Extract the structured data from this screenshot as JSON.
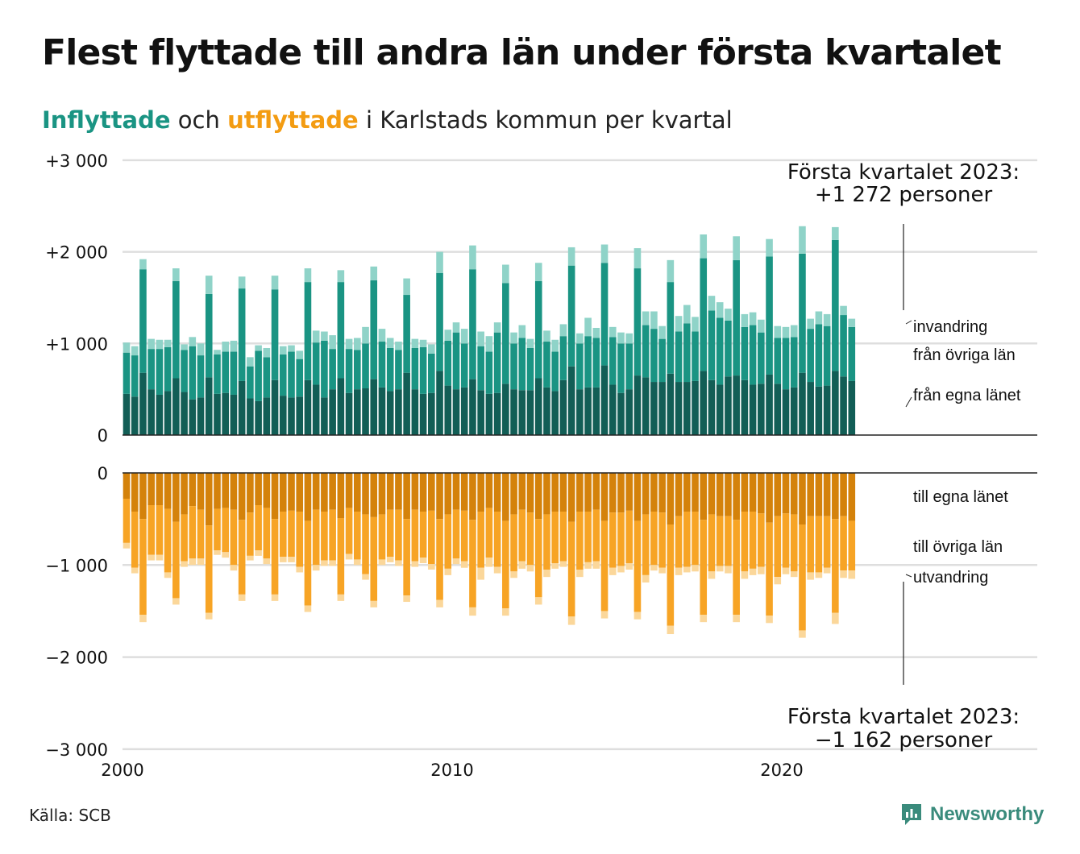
{
  "title": "Flest flyttade till andra län under första kvartalet",
  "subtitle": {
    "in_word": "Inflyttade",
    "and_word": "och",
    "out_word": "utflyttade",
    "rest": "i Karlstads kommun per kvartal"
  },
  "source": "Källa: SCB",
  "brand": "Newsworthy",
  "colors": {
    "in_own": "#125e56",
    "in_other": "#1a9483",
    "in_immig": "#8fd3c8",
    "out_own": "#d4820b",
    "out_other": "#f7a425",
    "out_emig": "#fbd79a"
  },
  "annotations": {
    "top_line1": "Första kvartalet 2023:",
    "top_line2": "+1 272 personer",
    "bottom_line1": "Första kvartalet 2023:",
    "bottom_line2": "−1 162 personer"
  },
  "chart_data": {
    "type": "bar",
    "stacked": true,
    "x_start": "2000 Q1",
    "x_end": "2023 Q1",
    "x_tick_labels": [
      "2000",
      "2010",
      "2020"
    ],
    "x_ticks": [
      2000,
      2010,
      2020
    ],
    "top_panel": {
      "y_tick_labels": [
        "0",
        "+1 000",
        "+2 000",
        "+3 000"
      ],
      "y_ticks": [
        0,
        1000,
        2000,
        3000
      ],
      "ylim": [
        0,
        3000
      ],
      "series": [
        {
          "name": "från egna länet",
          "values": [
            450,
            420,
            680,
            500,
            440,
            480,
            620,
            470,
            390,
            410,
            630,
            450,
            460,
            440,
            590,
            400,
            370,
            410,
            600,
            430,
            410,
            420,
            600,
            550,
            410,
            500,
            620,
            460,
            500,
            510,
            610,
            520,
            480,
            500,
            680,
            500,
            450,
            460,
            700,
            540,
            500,
            520,
            610,
            490,
            450,
            460,
            560,
            500,
            490,
            490,
            620,
            520,
            480,
            600,
            750,
            500,
            520,
            520,
            760,
            550,
            460,
            500,
            650,
            630,
            580,
            580,
            670,
            580,
            580,
            590,
            700,
            600,
            550,
            640,
            650,
            600,
            550,
            560,
            660,
            560,
            500,
            520,
            680,
            580,
            530,
            540,
            700,
            640,
            590
          ]
        },
        {
          "name": "från övriga län",
          "values": [
            450,
            450,
            1130,
            440,
            500,
            480,
            1060,
            460,
            580,
            460,
            910,
            430,
            450,
            470,
            1010,
            350,
            550,
            440,
            990,
            450,
            500,
            410,
            1070,
            460,
            620,
            440,
            1050,
            480,
            430,
            490,
            1080,
            500,
            470,
            430,
            850,
            450,
            510,
            430,
            1070,
            490,
            620,
            480,
            1200,
            480,
            460,
            660,
            1100,
            500,
            570,
            460,
            1060,
            500,
            430,
            480,
            1100,
            500,
            560,
            540,
            1120,
            520,
            540,
            500,
            1170,
            570,
            580,
            470,
            1000,
            550,
            640,
            540,
            1230,
            760,
            730,
            610,
            1260,
            580,
            650,
            560,
            1290,
            500,
            560,
            550,
            1300,
            580,
            680,
            650,
            1430,
            670,
            590
          ]
        },
        {
          "name": "invandring",
          "values": [
            110,
            100,
            110,
            110,
            100,
            80,
            140,
            60,
            100,
            130,
            200,
            50,
            110,
            120,
            130,
            100,
            60,
            100,
            150,
            90,
            70,
            90,
            150,
            130,
            100,
            150,
            130,
            110,
            130,
            180,
            150,
            140,
            110,
            90,
            180,
            100,
            80,
            100,
            230,
            120,
            110,
            160,
            260,
            160,
            170,
            110,
            200,
            120,
            140,
            100,
            200,
            120,
            130,
            130,
            200,
            110,
            200,
            110,
            200,
            110,
            120,
            110,
            220,
            150,
            190,
            140,
            240,
            170,
            200,
            160,
            260,
            160,
            170,
            130,
            260,
            140,
            140,
            140,
            190,
            130,
            120,
            130,
            300,
            110,
            140,
            130,
            140,
            100,
            90
          ]
        }
      ]
    },
    "bottom_panel": {
      "y_tick_labels": [
        "0",
        "−1 000",
        "−2 000",
        "−3 000"
      ],
      "y_ticks": [
        0,
        -1000,
        -2000,
        -3000
      ],
      "ylim": [
        -3000,
        0
      ],
      "series": [
        {
          "name": "till egna länet",
          "values": [
            -280,
            -420,
            -500,
            -350,
            -350,
            -390,
            -530,
            -450,
            -360,
            -400,
            -570,
            -390,
            -380,
            -400,
            -510,
            -430,
            -350,
            -380,
            -500,
            -420,
            -410,
            -420,
            -520,
            -400,
            -420,
            -400,
            -490,
            -380,
            -420,
            -450,
            -480,
            -450,
            -400,
            -400,
            -500,
            -400,
            -420,
            -410,
            -500,
            -450,
            -400,
            -410,
            -510,
            -420,
            -380,
            -420,
            -520,
            -450,
            -400,
            -430,
            -500,
            -450,
            -420,
            -420,
            -530,
            -420,
            -420,
            -400,
            -520,
            -430,
            -430,
            -410,
            -520,
            -450,
            -420,
            -430,
            -560,
            -470,
            -420,
            -420,
            -510,
            -450,
            -470,
            -470,
            -510,
            -420,
            -420,
            -440,
            -540,
            -470,
            -440,
            -450,
            -560,
            -470,
            -470,
            -470,
            -500,
            -470,
            -520
          ]
        },
        {
          "name": "till övriga län",
          "values": [
            -480,
            -610,
            -1040,
            -540,
            -540,
            -690,
            -830,
            -510,
            -570,
            -530,
            -950,
            -450,
            -480,
            -600,
            -810,
            -470,
            -490,
            -550,
            -820,
            -490,
            -500,
            -600,
            -920,
            -600,
            -530,
            -550,
            -830,
            -500,
            -520,
            -650,
            -910,
            -490,
            -510,
            -550,
            -830,
            -560,
            -500,
            -580,
            -880,
            -590,
            -530,
            -550,
            -950,
            -610,
            -540,
            -600,
            -950,
            -620,
            -560,
            -570,
            -850,
            -600,
            -560,
            -540,
            -1030,
            -630,
            -550,
            -560,
            -980,
            -600,
            -580,
            -570,
            -990,
            -660,
            -580,
            -600,
            -1100,
            -560,
            -600,
            -580,
            -1030,
            -620,
            -540,
            -540,
            -1030,
            -650,
            -620,
            -580,
            -1010,
            -660,
            -590,
            -620,
            -1150,
            -610,
            -610,
            -560,
            -1020,
            -590,
            -540
          ]
        },
        {
          "name": "utvandring",
          "values": [
            -60,
            -60,
            -80,
            -60,
            -60,
            -60,
            -70,
            -60,
            -70,
            -70,
            -70,
            -50,
            -60,
            -60,
            -70,
            -50,
            -60,
            -60,
            -70,
            -60,
            -60,
            -60,
            -70,
            -60,
            -60,
            -60,
            -70,
            -60,
            -60,
            -60,
            -70,
            -60,
            -60,
            -60,
            -70,
            -60,
            -60,
            -60,
            -80,
            -70,
            -60,
            -70,
            -90,
            -130,
            -100,
            -70,
            -80,
            -70,
            -80,
            -70,
            -80,
            -80,
            -60,
            -60,
            -90,
            -80,
            -70,
            -80,
            -80,
            -80,
            -70,
            -70,
            -80,
            -80,
            -60,
            -60,
            -90,
            -80,
            -60,
            -70,
            -80,
            -80,
            -60,
            -80,
            -80,
            -80,
            -70,
            -80,
            -80,
            -80,
            -70,
            -60,
            -80,
            -80,
            -60,
            -60,
            -120,
            -80,
            -90
          ]
        }
      ]
    },
    "legend_top": [
      "invandring",
      "från övriga län",
      "från egna länet"
    ],
    "legend_bottom": [
      "till egna länet",
      "till övriga län",
      "utvandring"
    ],
    "grid": true
  }
}
